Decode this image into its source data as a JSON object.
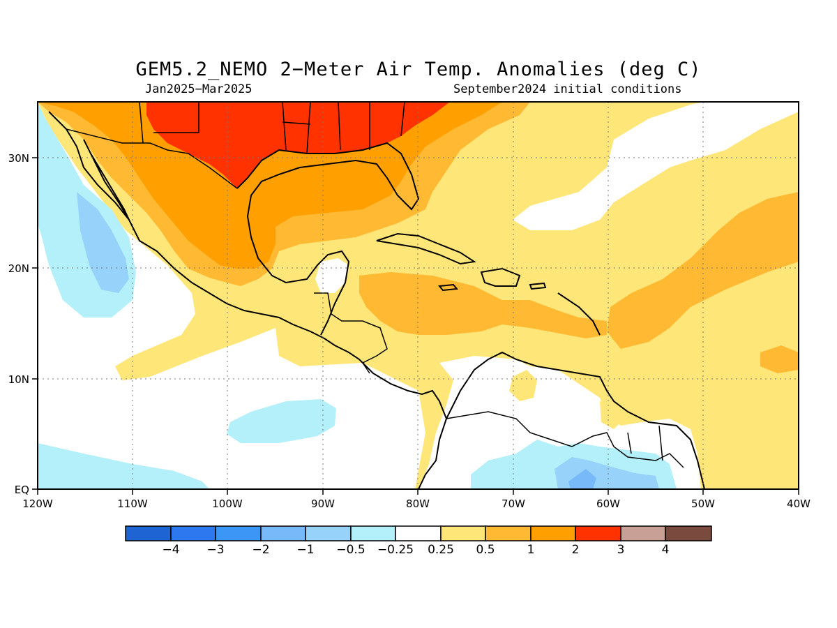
{
  "title": "GEM5.2_NEMO 2−Meter Air Temp. Anomalies (deg C)",
  "subtitle_left": "Jan2025−Mar2025",
  "subtitle_right": "September2024 initial conditions",
  "axes": {
    "lon_ticks": [
      "120W",
      "110W",
      "100W",
      "90W",
      "80W",
      "70W",
      "60W",
      "50W",
      "40W"
    ],
    "lat_ticks": [
      "EQ",
      "10N",
      "20N",
      "30N"
    ]
  },
  "colorbar": {
    "labels": [
      "−4",
      "−3",
      "−2",
      "−1",
      "−0.5",
      "−0.25",
      "0.25",
      "0.5",
      "1",
      "2",
      "3",
      "4"
    ],
    "colors": [
      "#1e64d2",
      "#2d78ee",
      "#3c96f5",
      "#78b9fa",
      "#96d2fa",
      "#b4f0fa",
      "#ffffff",
      "#ffe678",
      "#ffb932",
      "#ffa000",
      "#ff3200",
      "#c8a096",
      "#7a4a3e"
    ]
  },
  "map_fill_colors": {
    "below_neg_1": "#96d2fa",
    "neg_0_5": "#b4f0fa",
    "near_zero": "#ffffff",
    "pos_0_25": "#ffe678",
    "pos_0_5": "#ffb932",
    "pos_1": "#ffa000",
    "pos_2": "#ff3200"
  }
}
